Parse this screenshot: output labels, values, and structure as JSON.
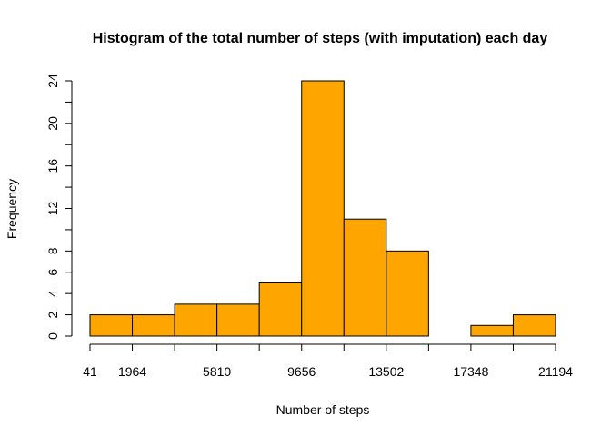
{
  "chart_data": {
    "type": "bar",
    "title": "Histogram of the total number of steps (with imputation) each day",
    "xlabel": "Number of steps",
    "ylabel": "Frequency",
    "bin_edges": [
      41,
      1964,
      3887,
      5810,
      7733,
      9656,
      11579,
      13502,
      15425,
      17348,
      19271,
      21194
    ],
    "values": [
      2,
      2,
      3,
      3,
      5,
      24,
      11,
      8,
      0,
      1,
      2
    ],
    "x_tick_positions": [
      41,
      1964,
      3887,
      5810,
      7733,
      9656,
      11579,
      13502,
      15425,
      17348,
      19271,
      21194
    ],
    "x_tick_labels": [
      "41",
      "1964",
      "",
      "5810",
      "",
      "9656",
      "",
      "13502",
      "",
      "17348",
      "",
      "21194"
    ],
    "y_ticks": [
      0,
      2,
      4,
      6,
      8,
      12,
      16,
      20,
      24
    ],
    "ylim": [
      0,
      24
    ],
    "bar_color": "#FFA500",
    "grid": false
  }
}
